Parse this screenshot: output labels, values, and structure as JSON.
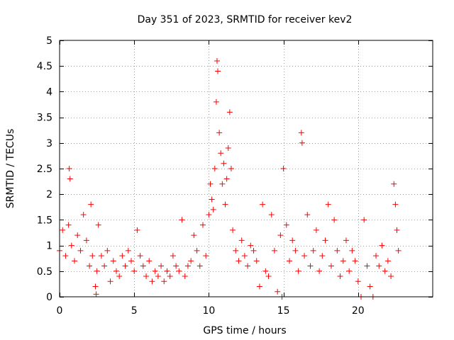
{
  "chart_data": {
    "type": "scatter",
    "title": "Day 351 of 2023, SRMTID for receiver kev2",
    "xlabel": "GPS time / hours",
    "ylabel": "SRMTID / TECUs",
    "xlim": [
      0,
      25
    ],
    "ylim": [
      0,
      5
    ],
    "xticks": [
      "0",
      "5",
      "10",
      "15",
      "20"
    ],
    "xtick_values": [
      0,
      5,
      10,
      15,
      20
    ],
    "yticks": [
      "0",
      "0.5",
      "1",
      "1.5",
      "2",
      "2.5",
      "3",
      "3.5",
      "4",
      "4.5",
      "5"
    ],
    "ytick_values": [
      0,
      0.5,
      1,
      1.5,
      2,
      2.5,
      3,
      3.5,
      4,
      4.5,
      5
    ],
    "grid": true,
    "marker": "plus",
    "series_color": "#ff0000",
    "series": [
      {
        "name": "kev2",
        "x": [
          0.0,
          0.2,
          0.4,
          0.6,
          0.65,
          0.7,
          0.8,
          1.0,
          1.2,
          1.4,
          1.6,
          1.8,
          2.0,
          2.1,
          2.2,
          2.4,
          2.45,
          2.5,
          2.6,
          2.8,
          3.0,
          3.2,
          3.4,
          3.6,
          3.8,
          4.0,
          4.2,
          4.4,
          4.6,
          4.8,
          5.0,
          5.2,
          5.4,
          5.6,
          5.8,
          6.0,
          6.2,
          6.4,
          6.6,
          6.8,
          7.0,
          7.2,
          7.4,
          7.6,
          7.8,
          8.0,
          8.2,
          8.4,
          8.6,
          8.8,
          9.0,
          9.2,
          9.4,
          9.6,
          9.8,
          10.0,
          10.1,
          10.2,
          10.3,
          10.4,
          10.5,
          10.55,
          10.6,
          10.7,
          10.8,
          10.9,
          11.0,
          11.1,
          11.2,
          11.3,
          11.4,
          11.5,
          11.6,
          11.8,
          12.0,
          12.2,
          12.4,
          12.6,
          12.8,
          13.0,
          13.2,
          13.4,
          13.6,
          13.8,
          14.0,
          14.2,
          14.4,
          14.6,
          14.8,
          14.9,
          15.0,
          15.2,
          15.4,
          15.6,
          15.8,
          16.0,
          16.2,
          16.25,
          16.4,
          16.6,
          16.8,
          17.0,
          17.2,
          17.4,
          17.6,
          17.8,
          18.0,
          18.2,
          18.4,
          18.6,
          18.8,
          19.0,
          19.2,
          19.4,
          19.6,
          19.8,
          20.0,
          20.2,
          20.4,
          20.6,
          20.8,
          21.0,
          21.2,
          21.4,
          21.6,
          21.8,
          22.0,
          22.2,
          22.4,
          22.5,
          22.6,
          22.7
        ],
        "y": [
          0.9,
          1.3,
          0.8,
          1.4,
          2.5,
          2.3,
          1.0,
          0.7,
          1.2,
          0.9,
          1.6,
          1.1,
          0.6,
          1.8,
          0.8,
          0.2,
          0.05,
          0.5,
          1.4,
          0.8,
          0.6,
          0.9,
          0.3,
          0.7,
          0.5,
          0.4,
          0.8,
          0.6,
          0.9,
          0.7,
          0.5,
          1.3,
          0.8,
          0.6,
          0.4,
          0.7,
          0.3,
          0.5,
          0.4,
          0.6,
          0.3,
          0.5,
          0.4,
          0.8,
          0.6,
          0.5,
          1.5,
          0.4,
          0.6,
          0.7,
          1.2,
          0.9,
          0.6,
          1.4,
          0.8,
          1.6,
          2.2,
          1.9,
          1.7,
          2.5,
          3.8,
          4.6,
          4.4,
          3.2,
          2.8,
          2.2,
          2.6,
          1.8,
          2.3,
          2.9,
          3.6,
          2.5,
          1.3,
          0.9,
          0.7,
          1.1,
          0.8,
          0.6,
          1.0,
          0.9,
          0.7,
          0.2,
          1.8,
          0.5,
          0.4,
          1.6,
          0.9,
          0.1,
          1.2,
          0.0,
          2.5,
          1.4,
          0.7,
          1.1,
          0.9,
          0.5,
          3.2,
          3.0,
          0.8,
          1.6,
          0.6,
          0.9,
          1.3,
          0.5,
          0.8,
          1.1,
          1.8,
          0.6,
          1.5,
          0.9,
          0.4,
          0.7,
          1.1,
          0.5,
          0.9,
          0.7,
          0.3,
          0.0,
          1.5,
          0.6,
          0.2,
          0.0,
          0.8,
          0.6,
          1.0,
          0.5,
          0.7,
          0.4,
          2.2,
          1.8,
          1.3,
          0.9
        ]
      }
    ]
  }
}
